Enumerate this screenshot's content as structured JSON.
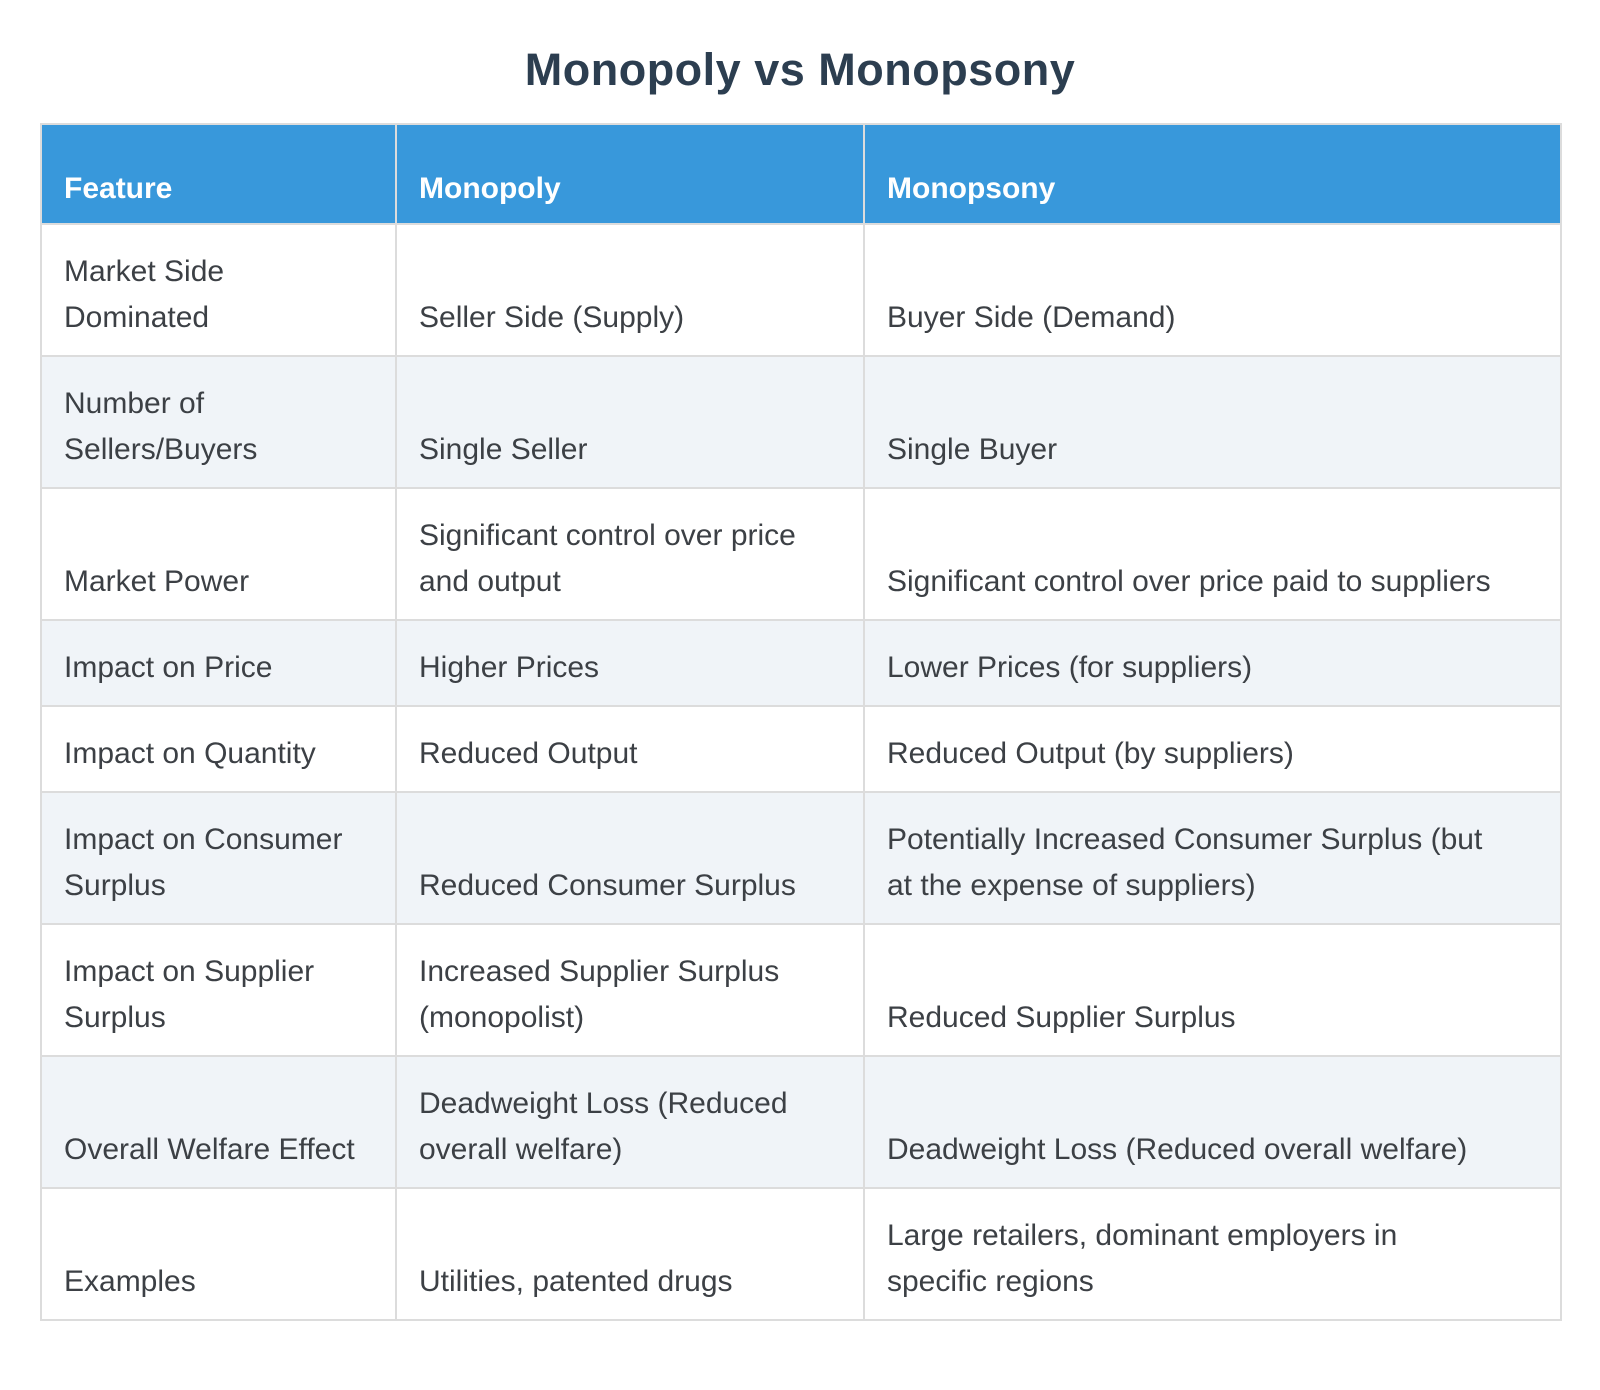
{
  "page_title": "Monopoly vs Monopsony",
  "colors": {
    "header_bg": "#3898db",
    "header_text": "#ffffff",
    "row_bg": "#ffffff",
    "row_alt_bg": "#f0f4f8",
    "border": "#dcdcdc",
    "title_text": "#2c3e50",
    "body_text": "#3c4045",
    "page_bg": "#ffffff"
  },
  "chart_data": {
    "type": "table",
    "title": "Monopoly vs Monopsony",
    "columns": [
      "Feature",
      "Monopoly",
      "Monopsony"
    ],
    "rows": [
      [
        "Market Side Dominated",
        "Seller Side (Supply)",
        "Buyer Side (Demand)"
      ],
      [
        "Number of Sellers/Buyers",
        "Single Seller",
        "Single Buyer"
      ],
      [
        "Market Power",
        "Significant control over price and output",
        "Significant control over price paid to suppliers"
      ],
      [
        "Impact on Price",
        "Higher Prices",
        "Lower Prices (for suppliers)"
      ],
      [
        "Impact on Quantity",
        "Reduced Output",
        "Reduced Output (by suppliers)"
      ],
      [
        "Impact on Consumer Surplus",
        "Reduced Consumer Surplus",
        "Potentially Increased Consumer Surplus (but at the expense of suppliers)"
      ],
      [
        "Impact on Supplier Surplus",
        "Increased Supplier Surplus (monopolist)",
        "Reduced Supplier Surplus"
      ],
      [
        "Overall Welfare Effect",
        "Deadweight Loss (Reduced overall welfare)",
        "Deadweight Loss (Reduced overall welfare)"
      ],
      [
        "Examples",
        "Utilities, patented drugs",
        "Large retailers, dominant employers in specific regions"
      ]
    ],
    "layout": {
      "header_row": true,
      "striped_rows": true,
      "title_position": "top-center"
    }
  }
}
